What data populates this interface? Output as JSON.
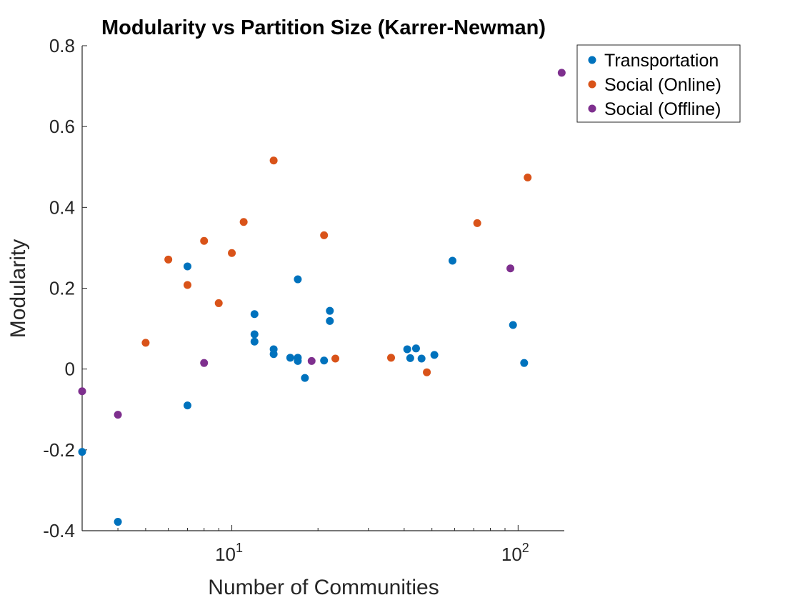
{
  "chart_data": {
    "type": "scatter",
    "title": "Modularity vs Partition Size (Karrer-Newman)",
    "xlabel": "Number of Communities",
    "ylabel": "Modularity",
    "xscale": "log",
    "xlim": [
      3,
      145
    ],
    "ylim": [
      -0.4,
      0.8
    ],
    "grid": false,
    "legend_position": "top-right outside",
    "y_ticks": [
      -0.4,
      -0.2,
      0,
      0.2,
      0.4,
      0.6,
      0.8
    ],
    "y_tick_labels": [
      "-0.4",
      "-0.2",
      "0",
      "0.2",
      "0.4",
      "0.6",
      "0.8"
    ],
    "x_ticks": [
      {
        "value": 10,
        "base": "10",
        "exp": "1"
      },
      {
        "value": 100,
        "base": "10",
        "exp": "2"
      }
    ],
    "series": [
      {
        "name": "Transportation",
        "color": "#0072BD",
        "points": [
          [
            3,
            -0.205
          ],
          [
            4,
            -0.378
          ],
          [
            7,
            0.254
          ],
          [
            7,
            -0.09
          ],
          [
            12,
            0.136
          ],
          [
            12,
            0.086
          ],
          [
            12,
            0.068
          ],
          [
            14,
            0.049
          ],
          [
            14,
            0.037
          ],
          [
            16,
            0.028
          ],
          [
            17,
            0.028
          ],
          [
            17,
            0.02
          ],
          [
            17,
            0.222
          ],
          [
            18,
            -0.022
          ],
          [
            21,
            0.021
          ],
          [
            22,
            0.144
          ],
          [
            22,
            0.119
          ],
          [
            41,
            0.049
          ],
          [
            42,
            0.027
          ],
          [
            44,
            0.051
          ],
          [
            46,
            0.026
          ],
          [
            51,
            0.035
          ],
          [
            59,
            0.268
          ],
          [
            96,
            0.109
          ],
          [
            105,
            0.015
          ]
        ]
      },
      {
        "name": "Social (Online)",
        "color": "#D95319",
        "points": [
          [
            5,
            0.065
          ],
          [
            6,
            0.271
          ],
          [
            7,
            0.208
          ],
          [
            8,
            0.317
          ],
          [
            9,
            0.163
          ],
          [
            10,
            0.287
          ],
          [
            11,
            0.364
          ],
          [
            14,
            0.516
          ],
          [
            21,
            0.331
          ],
          [
            23,
            0.026
          ],
          [
            36,
            0.028
          ],
          [
            48,
            -0.008
          ],
          [
            72,
            0.361
          ],
          [
            108,
            0.474
          ]
        ]
      },
      {
        "name": "Social (Offline)",
        "color": "#7E2F8E",
        "points": [
          [
            3,
            -0.055
          ],
          [
            4,
            -0.113
          ],
          [
            8,
            0.015
          ],
          [
            19,
            0.02
          ],
          [
            94,
            0.249
          ],
          [
            142,
            0.733
          ]
        ]
      }
    ]
  }
}
